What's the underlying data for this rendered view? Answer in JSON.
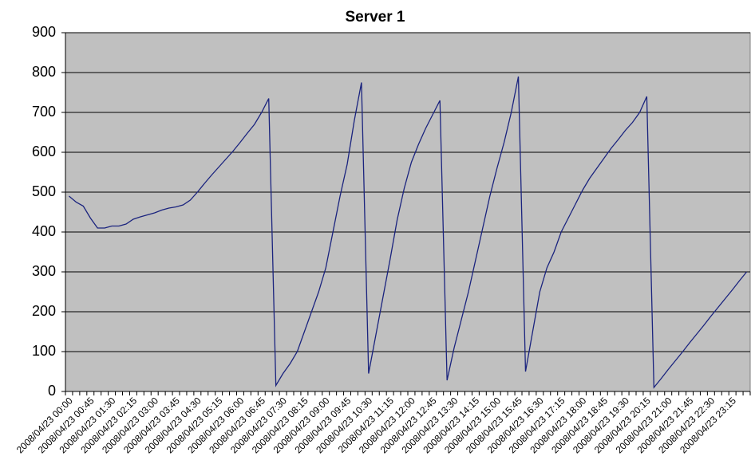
{
  "chart_data": {
    "type": "line",
    "title": "Server 1",
    "categories": [
      "2008/04/23 00:00",
      null,
      null,
      "2008/04/23 00:45",
      null,
      null,
      "2008/04/23 01:30",
      null,
      null,
      "2008/04/23 02:15",
      null,
      null,
      "2008/04/23 03:00",
      null,
      null,
      "2008/04/23 03:45",
      null,
      null,
      "2008/04/23 04:30",
      null,
      null,
      "2008/04/23 05:15",
      null,
      null,
      "2008/04/23 06:00",
      null,
      null,
      "2008/04/23 06:45",
      null,
      null,
      "2008/04/23 07:30",
      null,
      null,
      "2008/04/23 08:15",
      null,
      null,
      "2008/04/23 09:00",
      null,
      null,
      "2008/04/23 09:45",
      null,
      null,
      "2008/04/23 10:30",
      null,
      null,
      "2008/04/23 11:15",
      null,
      null,
      "2008/04/23 12:00",
      null,
      null,
      "2008/04/23 12:45",
      null,
      null,
      "2008/04/23 13:30",
      null,
      null,
      "2008/04/23 14:15",
      null,
      null,
      "2008/04/23 15:00",
      null,
      null,
      "2008/04/23 15:45",
      null,
      null,
      "2008/04/23 16:30",
      null,
      null,
      "2008/04/23 17:15",
      null,
      null,
      "2008/04/23 18:00",
      null,
      null,
      "2008/04/23 18:45",
      null,
      null,
      "2008/04/23 19:30",
      null,
      null,
      "2008/04/23 20:15",
      null,
      null,
      "2008/04/23 21:00",
      null,
      null,
      "2008/04/23 21:45",
      null,
      null,
      "2008/04/23 22:30",
      null,
      null,
      "2008/04/23 23:15",
      null,
      null
    ],
    "values": [
      490,
      475,
      465,
      435,
      410,
      410,
      415,
      415,
      420,
      432,
      438,
      443,
      448,
      455,
      460,
      463,
      468,
      480,
      500,
      522,
      543,
      563,
      583,
      603,
      625,
      648,
      670,
      700,
      735,
      15,
      45,
      70,
      100,
      150,
      200,
      250,
      310,
      400,
      490,
      570,
      680,
      775,
      45,
      140,
      235,
      330,
      430,
      510,
      575,
      620,
      660,
      695,
      730,
      28,
      110,
      180,
      250,
      330,
      410,
      490,
      560,
      625,
      700,
      790,
      50,
      150,
      250,
      310,
      350,
      400,
      435,
      470,
      505,
      535,
      560,
      585,
      610,
      632,
      655,
      675,
      700,
      740,
      10,
      32,
      55,
      77,
      99,
      122,
      144,
      166,
      189,
      211,
      233,
      255,
      278,
      300
    ],
    "color": "#1a237e",
    "ylim": [
      0,
      900
    ],
    "yticks": [
      0,
      100,
      200,
      300,
      400,
      500,
      600,
      700,
      800,
      900
    ],
    "grid": true
  }
}
